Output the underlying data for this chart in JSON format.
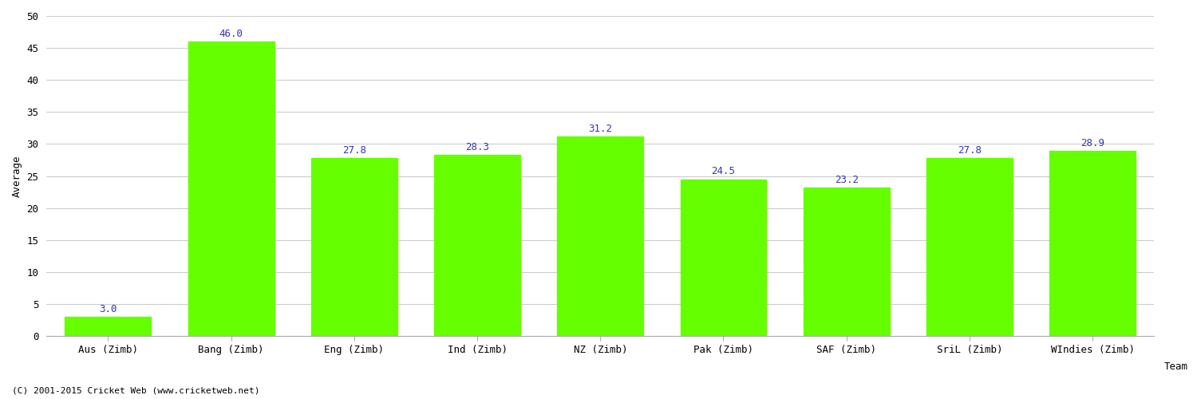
{
  "categories": [
    "Aus (Zimb)",
    "Bang (Zimb)",
    "Eng (Zimb)",
    "Ind (Zimb)",
    "NZ (Zimb)",
    "Pak (Zimb)",
    "SAF (Zimb)",
    "SriL (Zimb)",
    "WIndies (Zimb)"
  ],
  "values": [
    3.0,
    46.0,
    27.8,
    28.3,
    31.2,
    24.5,
    23.2,
    27.8,
    28.9
  ],
  "bar_color": "#66FF00",
  "bar_edge_color": "#66FF00",
  "label_color": "#3333bb",
  "xlabel": "Team",
  "ylabel": "Average",
  "ylim": [
    0,
    50
  ],
  "yticks": [
    0,
    5,
    10,
    15,
    20,
    25,
    30,
    35,
    40,
    45,
    50
  ],
  "grid_color": "#cccccc",
  "background_color": "#ffffff",
  "label_fontsize": 9,
  "axis_label_fontsize": 9,
  "tick_fontsize": 9,
  "footer_text": "(C) 2001-2015 Cricket Web (www.cricketweb.net)",
  "bar_width": 0.7
}
